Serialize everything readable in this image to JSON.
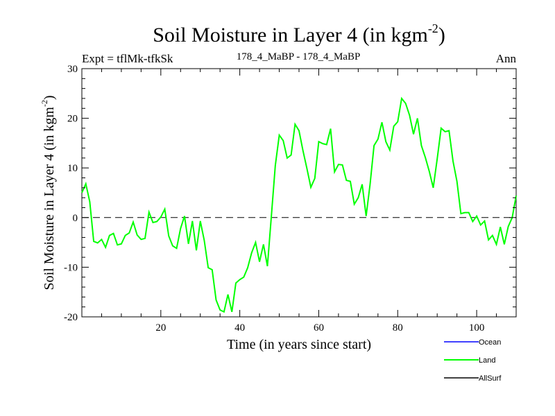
{
  "header": {
    "title_main": "Soil Moisture in Layer 4 (in kgm",
    "title_sup": "-2",
    "title_close": ")",
    "left": "Expt = tflMk-tfkSk",
    "center": "178_4_MaBP - 178_4_MaBP",
    "right": "Ann"
  },
  "chart_data": {
    "type": "line",
    "title": "Soil Moisture in Layer 4 (in kgm-2)",
    "xlabel": "Time (in years since start)",
    "ylabel_main": "Soil Moisture in Layer 4 (in kgm",
    "ylabel_sup": "-2",
    "ylabel_close": ")",
    "xlim": [
      0,
      110
    ],
    "ylim": [
      -20,
      30
    ],
    "xticks": [
      20,
      40,
      60,
      80,
      100
    ],
    "yticks": [
      -20,
      -10,
      0,
      10,
      20,
      30
    ],
    "reference_line": 0,
    "legend": [
      {
        "name": "Ocean",
        "color": "#0000ff"
      },
      {
        "name": "Land",
        "color": "#00ff00"
      },
      {
        "name": "AllSurf",
        "color": "#000000"
      }
    ],
    "series": [
      {
        "name": "Land",
        "color": "#00ff00",
        "x": [
          0,
          1,
          2,
          3,
          4,
          5,
          6,
          7,
          8,
          9,
          10,
          11,
          12,
          13,
          14,
          15,
          16,
          17,
          18,
          19,
          20,
          21,
          22,
          23,
          24,
          25,
          26,
          27,
          28,
          29,
          30,
          31,
          32,
          33,
          34,
          35,
          36,
          37,
          38,
          39,
          40,
          41,
          42,
          43,
          44,
          45,
          46,
          47,
          48,
          49,
          50,
          51,
          52,
          53,
          54,
          55,
          56,
          57,
          58,
          59,
          60,
          61,
          62,
          63,
          64,
          65,
          66,
          67,
          68,
          69,
          70,
          71,
          72,
          73,
          74,
          75,
          76,
          77,
          78,
          79,
          80,
          81,
          82,
          83,
          84,
          85,
          86,
          87,
          88,
          89,
          90,
          91,
          92,
          93,
          94,
          95,
          96,
          97,
          98,
          99,
          100,
          101,
          102,
          103,
          104,
          105,
          106,
          107,
          108,
          109,
          110
        ],
        "values": [
          5.0,
          6.8,
          3.2,
          -4.8,
          -5.1,
          -4.4,
          -6.0,
          -3.6,
          -3.2,
          -5.5,
          -5.3,
          -3.6,
          -3.1,
          -0.9,
          -3.5,
          -4.4,
          -4.2,
          1.1,
          -1.0,
          -0.8,
          0.1,
          1.7,
          -3.7,
          -5.7,
          -6.2,
          -2.2,
          0.3,
          -5.3,
          -0.7,
          -6.6,
          -0.7,
          -4.6,
          -10.1,
          -10.5,
          -16.6,
          -18.6,
          -19.0,
          -15.5,
          -19.0,
          -13.2,
          -12.5,
          -12.0,
          -10.1,
          -7.1,
          -5.0,
          -8.9,
          -5.4,
          -9.8,
          0.3,
          10.5,
          16.6,
          15.5,
          12.0,
          12.6,
          18.8,
          17.5,
          13.5,
          9.9,
          6.1,
          7.9,
          15.3,
          14.9,
          14.7,
          17.9,
          9.2,
          10.7,
          10.6,
          7.5,
          7.3,
          2.7,
          4.0,
          6.7,
          0.3,
          6.7,
          14.5,
          15.8,
          19.2,
          15.3,
          13.6,
          18.4,
          19.3,
          24.0,
          23.0,
          20.6,
          16.8,
          20.0,
          14.5,
          12.1,
          9.3,
          6.0,
          11.8,
          18.0,
          17.3,
          17.5,
          11.4,
          7.3,
          0.8,
          1.0,
          1.0,
          -0.8,
          0.3,
          -1.5,
          -0.7,
          -4.5,
          -3.6,
          -5.4,
          -1.9,
          -5.4,
          -1.8,
          0.0,
          4.4
        ]
      }
    ]
  }
}
